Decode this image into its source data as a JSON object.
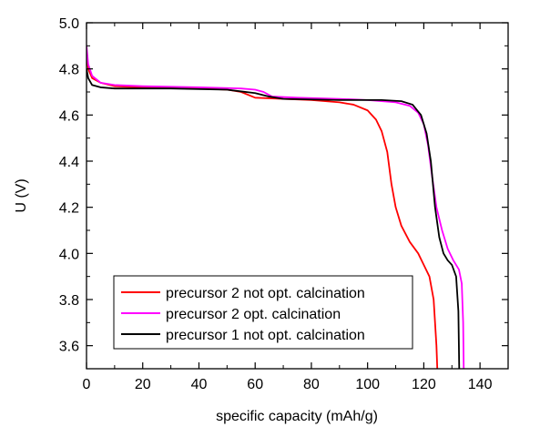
{
  "chart_data": {
    "type": "line",
    "title": "",
    "xlabel": "specific capacity  (mAh/g)",
    "ylabel": "U (V)",
    "xlim": [
      0,
      150
    ],
    "ylim": [
      3.5,
      5.0
    ],
    "x_ticks": [
      0,
      20,
      40,
      60,
      80,
      100,
      120,
      140
    ],
    "x_tick_labels": [
      "0",
      "20",
      "40",
      "60",
      "80",
      "100",
      "120",
      "140"
    ],
    "y_ticks": [
      3.6,
      3.8,
      4.0,
      4.2,
      4.4,
      4.6,
      4.8,
      5.0
    ],
    "y_tick_labels": [
      "3.6",
      "3.8",
      "4.0",
      "4.2",
      "4.4",
      "4.6",
      "4.8",
      "5.0"
    ],
    "grid": false,
    "legend_position": "bottom-left",
    "series": [
      {
        "name": "precursor 2 not opt. calcination",
        "color": "#ff0000",
        "points": [
          [
            0,
            4.88
          ],
          [
            0.6,
            4.8
          ],
          [
            2,
            4.76
          ],
          [
            5,
            4.74
          ],
          [
            10,
            4.725
          ],
          [
            20,
            4.72
          ],
          [
            40,
            4.715
          ],
          [
            50,
            4.71
          ],
          [
            55,
            4.7
          ],
          [
            60,
            4.675
          ],
          [
            70,
            4.67
          ],
          [
            80,
            4.665
          ],
          [
            90,
            4.655
          ],
          [
            95,
            4.645
          ],
          [
            100,
            4.62
          ],
          [
            103,
            4.58
          ],
          [
            105,
            4.53
          ],
          [
            107,
            4.44
          ],
          [
            108.5,
            4.3
          ],
          [
            110,
            4.2
          ],
          [
            112,
            4.12
          ],
          [
            115,
            4.05
          ],
          [
            118,
            4.0
          ],
          [
            120,
            3.95
          ],
          [
            122,
            3.9
          ],
          [
            123.5,
            3.8
          ],
          [
            124.5,
            3.6
          ],
          [
            124.8,
            3.5
          ]
        ]
      },
      {
        "name": "precursor 2 opt. calcination",
        "color": "#ff00ff",
        "points": [
          [
            0,
            4.9
          ],
          [
            0.6,
            4.82
          ],
          [
            2,
            4.77
          ],
          [
            5,
            4.74
          ],
          [
            10,
            4.73
          ],
          [
            20,
            4.725
          ],
          [
            40,
            4.72
          ],
          [
            55,
            4.715
          ],
          [
            60,
            4.71
          ],
          [
            63,
            4.7
          ],
          [
            66,
            4.68
          ],
          [
            75,
            4.675
          ],
          [
            90,
            4.67
          ],
          [
            100,
            4.665
          ],
          [
            110,
            4.655
          ],
          [
            115,
            4.64
          ],
          [
            118,
            4.61
          ],
          [
            120,
            4.56
          ],
          [
            121.5,
            4.47
          ],
          [
            123,
            4.33
          ],
          [
            124.5,
            4.2
          ],
          [
            126.5,
            4.1
          ],
          [
            128.5,
            4.02
          ],
          [
            130.5,
            3.97
          ],
          [
            132.5,
            3.93
          ],
          [
            133.5,
            3.87
          ],
          [
            134,
            3.7
          ],
          [
            134.2,
            3.5
          ]
        ]
      },
      {
        "name": "precursor 1 not opt. calcination",
        "color": "#000000",
        "points": [
          [
            0,
            4.8
          ],
          [
            0.6,
            4.76
          ],
          [
            2,
            4.73
          ],
          [
            5,
            4.72
          ],
          [
            10,
            4.715
          ],
          [
            30,
            4.715
          ],
          [
            50,
            4.71
          ],
          [
            60,
            4.695
          ],
          [
            65,
            4.68
          ],
          [
            70,
            4.67
          ],
          [
            90,
            4.665
          ],
          [
            105,
            4.665
          ],
          [
            112,
            4.66
          ],
          [
            116,
            4.645
          ],
          [
            119,
            4.6
          ],
          [
            121,
            4.52
          ],
          [
            122.5,
            4.4
          ],
          [
            124,
            4.2
          ],
          [
            125.5,
            4.07
          ],
          [
            127,
            4.0
          ],
          [
            128.5,
            3.97
          ],
          [
            130,
            3.95
          ],
          [
            131.5,
            3.9
          ],
          [
            132.3,
            3.75
          ],
          [
            132.6,
            3.5
          ]
        ]
      }
    ]
  }
}
